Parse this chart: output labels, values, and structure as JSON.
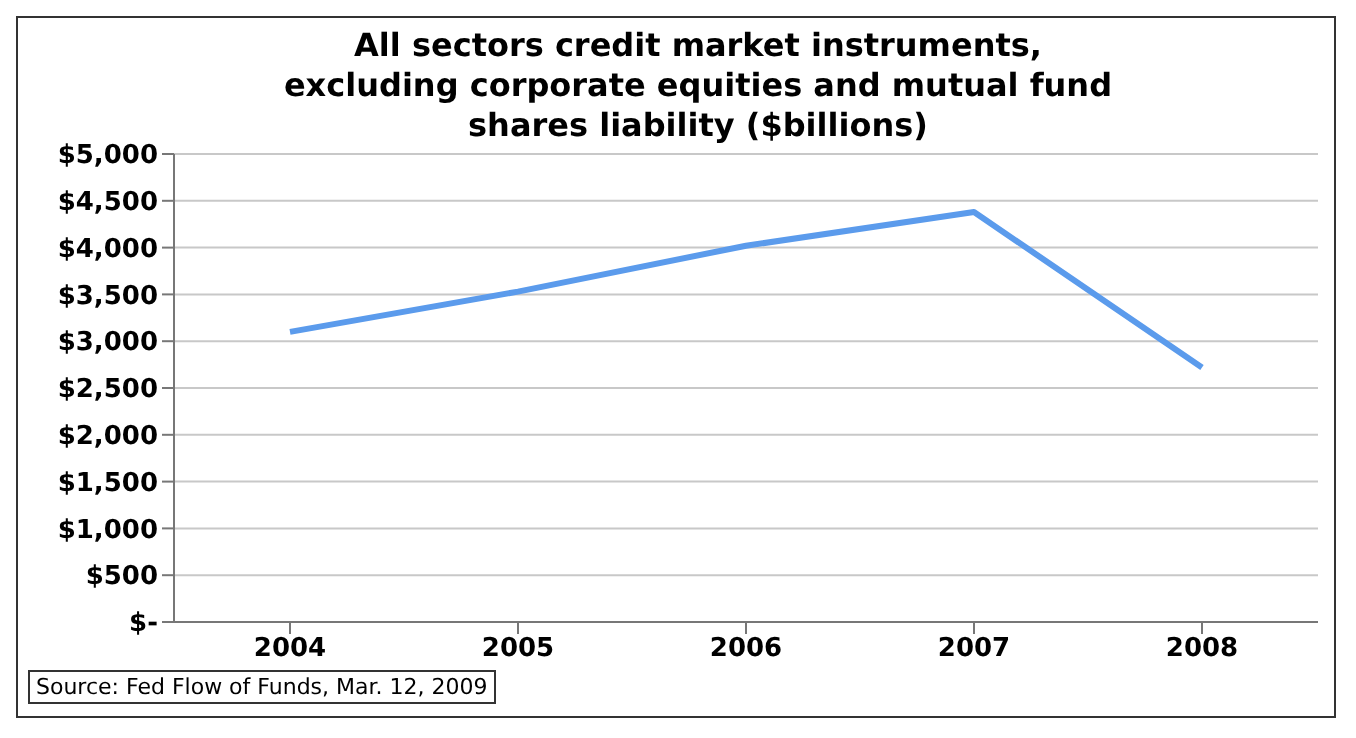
{
  "chart_data": {
    "type": "line",
    "title": "All sectors credit market instruments, excluding corporate equities and mutual fund shares liability ($billions)",
    "categories": [
      "2004",
      "2005",
      "2006",
      "2007",
      "2008"
    ],
    "series": [
      {
        "color": "#5b9bec",
        "values": [
          3100,
          3530,
          4020,
          4380,
          2720
        ]
      }
    ],
    "ylim": [
      0,
      5000
    ],
    "yticks": [
      {
        "value": 0,
        "label": "$-"
      },
      {
        "value": 500,
        "label": "$500"
      },
      {
        "value": 1000,
        "label": "$1,000"
      },
      {
        "value": 1500,
        "label": "$1,500"
      },
      {
        "value": 2000,
        "label": "$2,000"
      },
      {
        "value": 2500,
        "label": "$2,500"
      },
      {
        "value": 3000,
        "label": "$3,000"
      },
      {
        "value": 3500,
        "label": "$3,500"
      },
      {
        "value": 4000,
        "label": "$4,000"
      },
      {
        "value": 4500,
        "label": "$4,500"
      },
      {
        "value": 5000,
        "label": "$5,000"
      }
    ],
    "grid": "y",
    "marker": "none",
    "annotations": [
      "Source: Fed Flow of Funds, Mar. 12, 2009"
    ]
  }
}
